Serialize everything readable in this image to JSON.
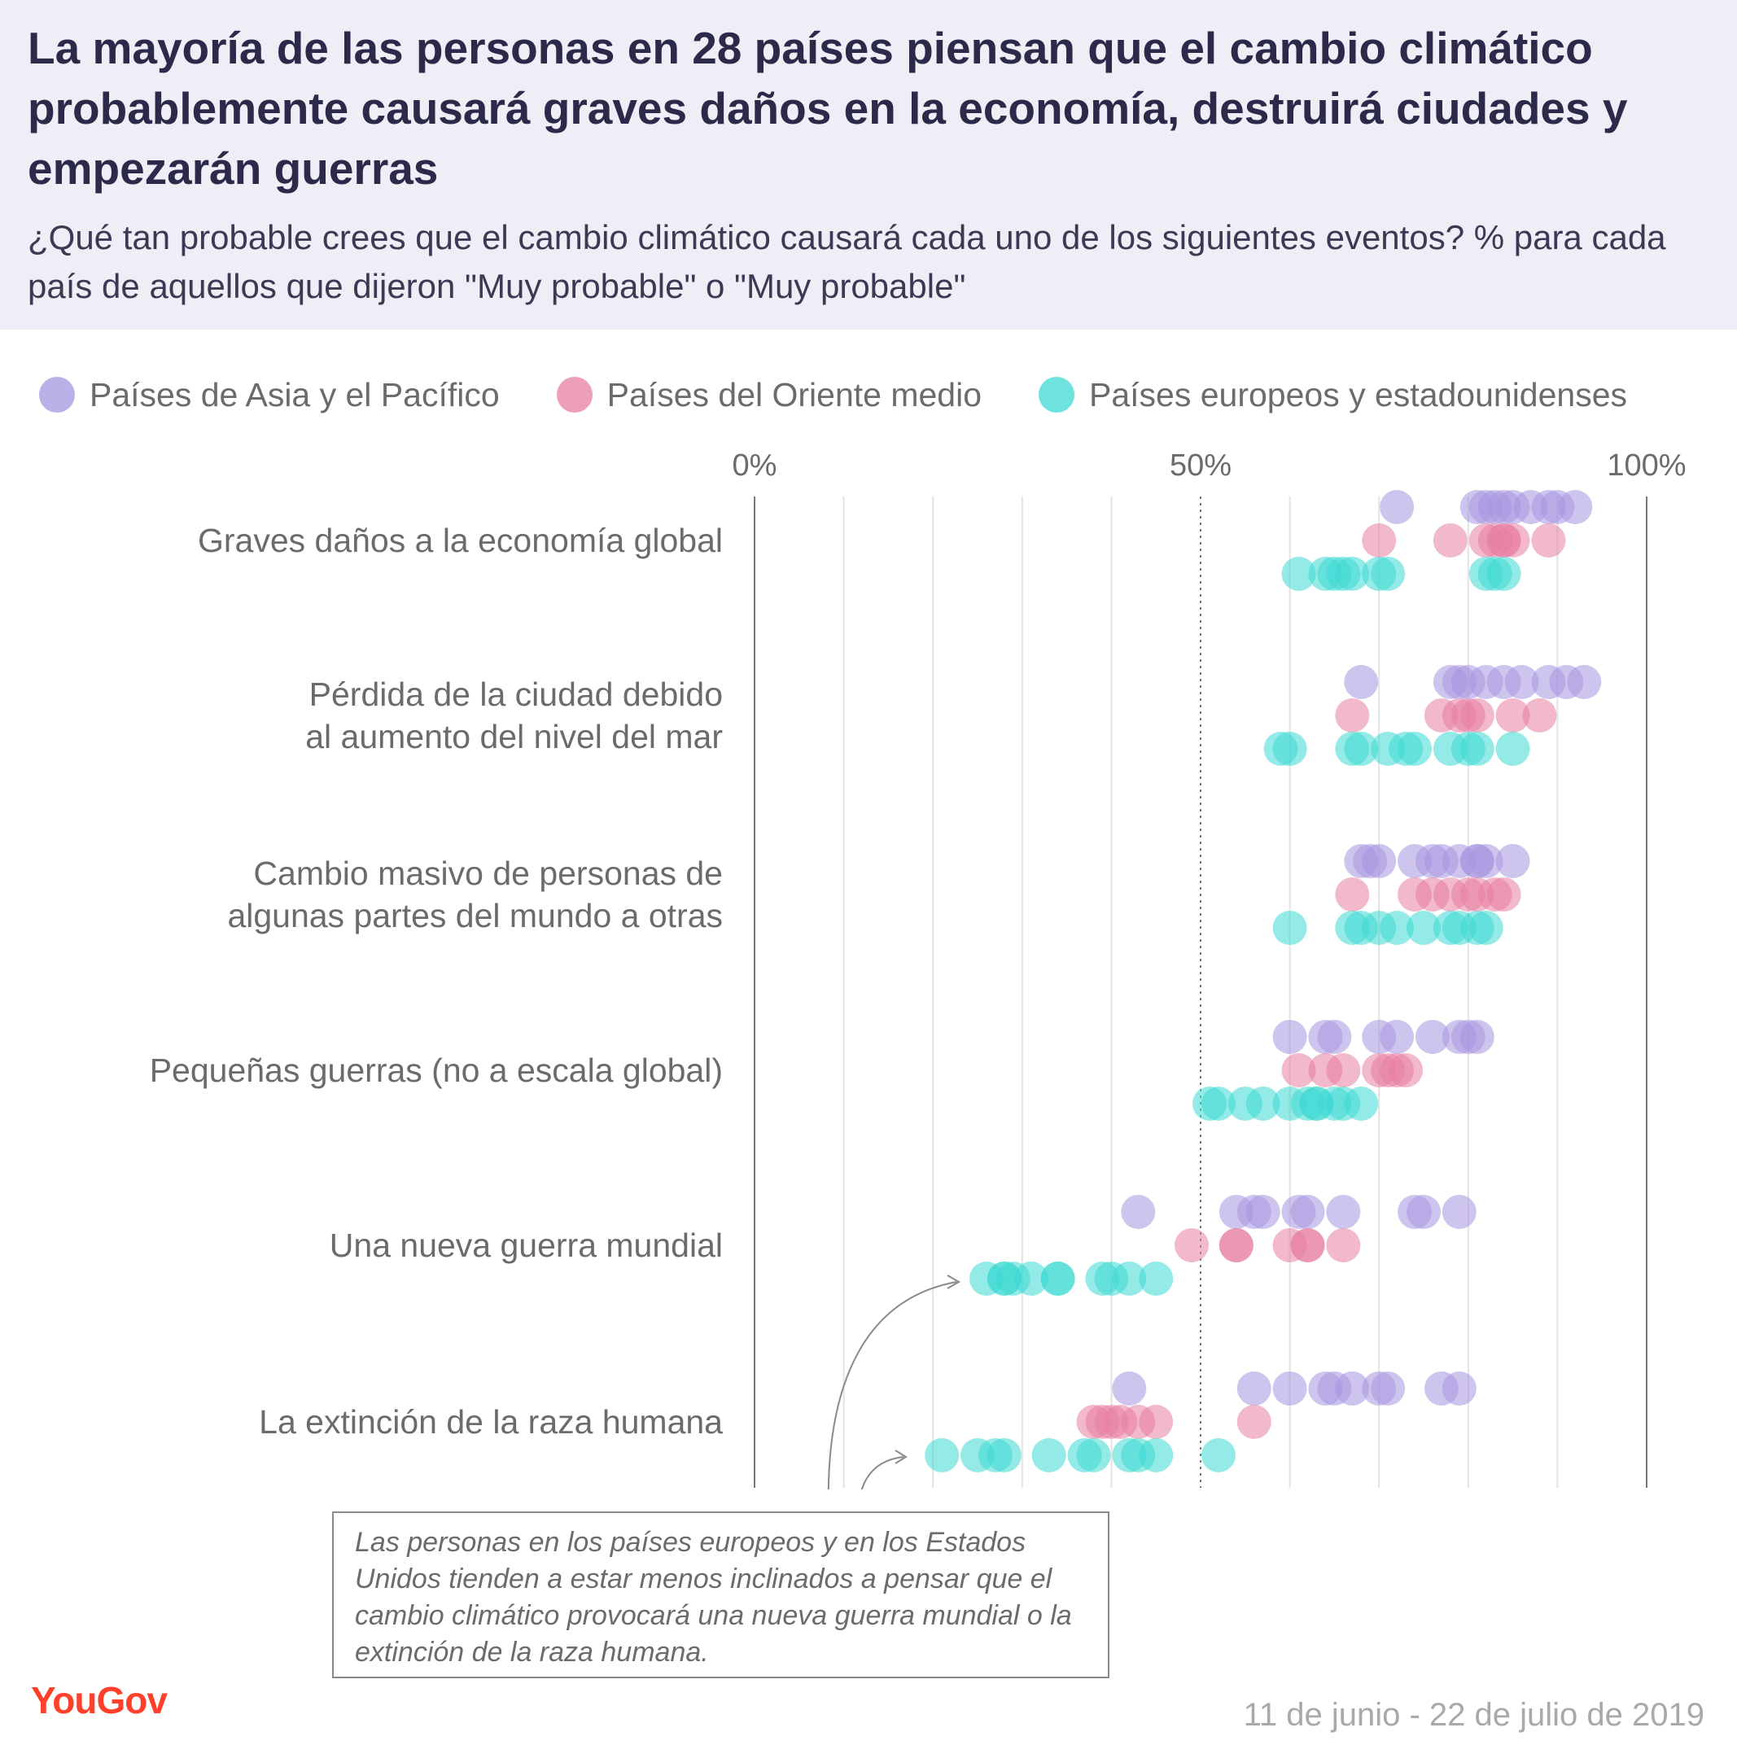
{
  "title": "La mayoría de las personas en 28 países piensan que el cambio climático probablemente causará graves daños en la economía, destruirá ciudades y empezarán guerras",
  "subtitle": "¿Qué tan probable crees que el cambio climático causará cada uno de los siguientes eventos? % para cada país de aquellos que dijeron \"Muy probable\" o \"Muy probable\"",
  "note": "Las personas en los países europeos y en los Estados Unidos tienden a estar menos inclinados a pensar que el cambio climático provocará una nueva guerra mundial o la extinción de la raza humana.",
  "logo": "YouGov",
  "date": "11 de junio - 22 de julio de 2019",
  "colors": {
    "asia": "#a595e0",
    "mideast": "#e77ea2",
    "europe": "#3dd9d1"
  },
  "chart_data": {
    "type": "scatter",
    "xlim": [
      0,
      100
    ],
    "x_ticks": [
      "0%",
      "50%",
      "100%"
    ],
    "categories": [
      "Graves daños a la economía global",
      "Pérdida de la ciudad debido al aumento del nivel del mar",
      "Cambio masivo de personas de algunas partes del mundo a otras",
      "Pequeñas guerras (no a escala global)",
      "Una nueva guerra mundial",
      "La extinción de la raza humana"
    ],
    "category_lines": [
      [
        "Graves daños a la economía global"
      ],
      [
        "Pérdida de la ciudad debido",
        "al aumento del nivel del mar"
      ],
      [
        "Cambio masivo de personas de",
        "algunas partes del mundo a otras"
      ],
      [
        "Pequeñas guerras (no a escala global)"
      ],
      [
        "Una nueva guerra mundial"
      ],
      [
        "La extinción de la raza humana"
      ]
    ],
    "series": [
      {
        "name": "Países de Asia y el Pacífico",
        "color": "#a595e0",
        "values": [
          [
            72,
            81,
            82,
            83,
            84,
            85,
            87,
            89,
            90,
            92
          ],
          [
            68,
            78,
            79,
            80,
            82,
            84,
            86,
            89,
            91,
            93
          ],
          [
            68,
            69,
            70,
            74,
            76,
            77,
            79,
            81,
            81,
            82,
            85
          ],
          [
            60,
            64,
            65,
            70,
            72,
            76,
            79,
            80,
            81
          ],
          [
            43,
            54,
            56,
            57,
            61,
            62,
            66,
            74,
            75,
            79
          ],
          [
            42,
            56,
            60,
            64,
            65,
            67,
            70,
            71,
            77,
            79
          ]
        ]
      },
      {
        "name": "Países del Oriente medio",
        "color": "#e77ea2",
        "values": [
          [
            70,
            78,
            82,
            83,
            84,
            84,
            85,
            89
          ],
          [
            67,
            77,
            79,
            80,
            81,
            85,
            88
          ],
          [
            67,
            74,
            76,
            78,
            80,
            81,
            83,
            84
          ],
          [
            61,
            64,
            66,
            70,
            71,
            72,
            73
          ],
          [
            49,
            54,
            54,
            60,
            62,
            62,
            66
          ],
          [
            38,
            39,
            40,
            41,
            43,
            45,
            56
          ]
        ]
      },
      {
        "name": "Países europeos y estadounidenses",
        "color": "#3dd9d1",
        "values": [
          [
            61,
            64,
            65,
            66,
            67,
            70,
            71,
            82,
            83,
            84
          ],
          [
            59,
            60,
            67,
            68,
            71,
            73,
            74,
            78,
            80,
            81,
            85
          ],
          [
            60,
            67,
            68,
            70,
            72,
            75,
            78,
            79,
            81,
            82
          ],
          [
            51,
            52,
            55,
            57,
            60,
            62,
            63,
            63,
            65,
            66,
            68
          ],
          [
            26,
            28,
            28,
            29,
            31,
            34,
            34,
            39,
            40,
            42,
            45
          ],
          [
            21,
            25,
            27,
            28,
            33,
            37,
            38,
            42,
            43,
            45,
            52
          ]
        ]
      }
    ]
  }
}
